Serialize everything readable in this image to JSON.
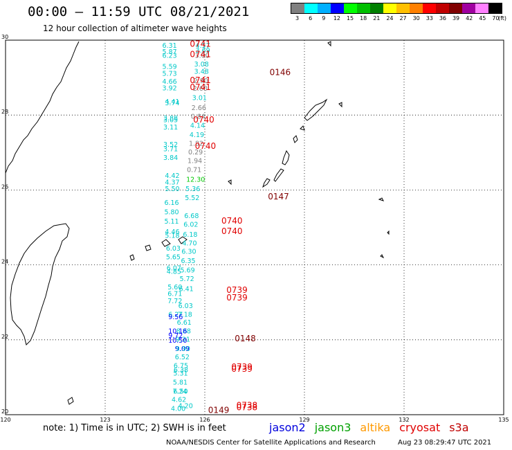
{
  "title": "00:00 – 11:59 UTC 08/21/2021",
  "subtitle": "12 hour collection of altimeter wave heights",
  "legend": {
    "labels": [
      "3",
      "6",
      "9",
      "12",
      "15",
      "18",
      "21",
      "24",
      "27",
      "30",
      "33",
      "36",
      "39",
      "42",
      "45",
      "70",
      "(ft)"
    ],
    "colors": [
      "#808080",
      "#00ffff",
      "#00b0ff",
      "#0000ff",
      "#00ff00",
      "#00c000",
      "#008000",
      "#ffff00",
      "#ffc000",
      "#ff8000",
      "#ff0000",
      "#c00000",
      "#800000",
      "#a000a0",
      "#ff80ff",
      "#000000"
    ]
  },
  "axes": {
    "lon_labels": [
      "120",
      "123",
      "126",
      "129",
      "132",
      "135"
    ],
    "lat_labels": [
      "30",
      "28",
      "26",
      "24",
      "22",
      "20"
    ]
  },
  "chart_data": {
    "type": "scatter",
    "xlim": [
      120,
      135
    ],
    "ylim": [
      20,
      30
    ],
    "gridlines": "dotted",
    "wave_heights": [
      {
        "x": 125.72,
        "y": 29.8,
        "text": "4.57",
        "color": "#00c8c8"
      },
      {
        "x": 125.72,
        "y": 29.67,
        "text": "3.69",
        "color": "#00c8c8"
      },
      {
        "x": 125.7,
        "y": 29.53,
        "text": "3.00",
        "color": "#808080"
      },
      {
        "x": 125.68,
        "y": 29.3,
        "text": "3.08",
        "color": "#00c8c8"
      },
      {
        "x": 125.68,
        "y": 29.1,
        "text": "3.48",
        "color": "#00c8c8"
      },
      {
        "x": 125.66,
        "y": 28.85,
        "text": "2.90",
        "color": "#808080"
      },
      {
        "x": 125.64,
        "y": 28.65,
        "text": "2.60",
        "color": "#808080"
      },
      {
        "x": 125.62,
        "y": 28.4,
        "text": "3.01",
        "color": "#00c8c8"
      },
      {
        "x": 125.6,
        "y": 28.13,
        "text": "2.66",
        "color": "#808080"
      },
      {
        "x": 125.58,
        "y": 27.9,
        "text": "0.84",
        "color": "#808080"
      },
      {
        "x": 125.56,
        "y": 27.66,
        "text": "4.14",
        "color": "#00c8c8"
      },
      {
        "x": 125.54,
        "y": 27.41,
        "text": "4.19",
        "color": "#00c8c8"
      },
      {
        "x": 125.52,
        "y": 27.18,
        "text": "1.82",
        "color": "#808080"
      },
      {
        "x": 125.5,
        "y": 26.95,
        "text": "0.29",
        "color": "#808080"
      },
      {
        "x": 125.48,
        "y": 26.72,
        "text": "1.94",
        "color": "#808080"
      },
      {
        "x": 125.46,
        "y": 26.48,
        "text": "0.71",
        "color": "#808080"
      },
      {
        "x": 125.44,
        "y": 26.22,
        "text": "12.30",
        "color": "#00c800"
      },
      {
        "x": 125.42,
        "y": 25.97,
        "text": "5.36",
        "color": "#00c8c8"
      },
      {
        "x": 125.4,
        "y": 25.73,
        "text": "5.52",
        "color": "#00c8c8"
      },
      {
        "x": 125.38,
        "y": 25.25,
        "text": "6.68",
        "color": "#00c8c8"
      },
      {
        "x": 125.36,
        "y": 25.02,
        "text": "6.02",
        "color": "#00c8c8"
      },
      {
        "x": 125.34,
        "y": 24.75,
        "text": "6.18",
        "color": "#00c8c8"
      },
      {
        "x": 125.32,
        "y": 24.52,
        "text": "4.70",
        "color": "#00c8c8"
      },
      {
        "x": 125.3,
        "y": 24.3,
        "text": "6.30",
        "color": "#00c8c8"
      },
      {
        "x": 125.28,
        "y": 24.05,
        "text": "6.35",
        "color": "#00c8c8"
      },
      {
        "x": 125.26,
        "y": 23.8,
        "text": "5.69",
        "color": "#00c8c8"
      },
      {
        "x": 125.24,
        "y": 23.57,
        "text": "5.72",
        "color": "#00c8c8"
      },
      {
        "x": 125.22,
        "y": 23.3,
        "text": "6.41",
        "color": "#00c8c8"
      },
      {
        "x": 125.2,
        "y": 22.85,
        "text": "6.03",
        "color": "#00c8c8"
      },
      {
        "x": 125.18,
        "y": 22.62,
        "text": "7.18",
        "color": "#00c8c8"
      },
      {
        "x": 125.16,
        "y": 22.4,
        "text": "6.61",
        "color": "#00c8c8"
      },
      {
        "x": 125.14,
        "y": 22.17,
        "text": "8.88",
        "color": "#00c8c8"
      },
      {
        "x": 125.12,
        "y": 21.95,
        "text": "9.31",
        "color": "#00c8c8"
      },
      {
        "x": 125.1,
        "y": 21.7,
        "text": "9.09",
        "color": "#0000ff"
      },
      {
        "x": 125.12,
        "y": 21.7,
        "text": "9.90",
        "color": "#00c8c8"
      },
      {
        "x": 125.1,
        "y": 21.48,
        "text": "6.52",
        "color": "#00c8c8"
      },
      {
        "x": 125.06,
        "y": 21.25,
        "text": "6.75",
        "color": "#00c8c8"
      },
      {
        "x": 125.06,
        "y": 21.14,
        "text": "6.38",
        "color": "#00c8c8"
      },
      {
        "x": 125.05,
        "y": 21.04,
        "text": "5.31",
        "color": "#00c8c8"
      },
      {
        "x": 125.04,
        "y": 20.8,
        "text": "5.81",
        "color": "#00c8c8"
      },
      {
        "x": 125.03,
        "y": 20.56,
        "text": "7.24",
        "color": "#00c8c8"
      },
      {
        "x": 125.05,
        "y": 20.56,
        "text": "6.50",
        "color": "#00c8c8"
      },
      {
        "x": 125.0,
        "y": 20.34,
        "text": "4.62",
        "color": "#00c8c8"
      },
      {
        "x": 125.2,
        "y": 20.18,
        "text": "4.20",
        "color": "#00c8c8"
      },
      {
        "x": 124.98,
        "y": 20.1,
        "text": "4.00",
        "color": "#00c8c8"
      },
      {
        "x": 124.72,
        "y": 29.8,
        "text": "6.31",
        "color": "#00c8c8"
      },
      {
        "x": 124.72,
        "y": 29.63,
        "text": "5.87",
        "color": "#00c8c8"
      },
      {
        "x": 124.72,
        "y": 29.53,
        "text": "6.23",
        "color": "#00c8c8"
      },
      {
        "x": 124.72,
        "y": 29.23,
        "text": "5.59",
        "color": "#00c8c8"
      },
      {
        "x": 124.72,
        "y": 29.05,
        "text": "5.73",
        "color": "#00c8c8"
      },
      {
        "x": 124.72,
        "y": 28.84,
        "text": "4.66",
        "color": "#00c8c8"
      },
      {
        "x": 124.72,
        "y": 28.66,
        "text": "3.92",
        "color": "#00c8c8"
      },
      {
        "x": 124.8,
        "y": 28.3,
        "text": "4.41",
        "color": "#00c8c8"
      },
      {
        "x": 124.8,
        "y": 28.26,
        "text": "3.74",
        "color": "#00c8c8"
      },
      {
        "x": 124.75,
        "y": 27.86,
        "text": "3.88",
        "color": "#00c8c8"
      },
      {
        "x": 124.75,
        "y": 27.81,
        "text": "3.05",
        "color": "#00c8c8"
      },
      {
        "x": 124.75,
        "y": 27.62,
        "text": "3.11",
        "color": "#00c8c8"
      },
      {
        "x": 124.75,
        "y": 27.15,
        "text": "3.52",
        "color": "#00c8c8"
      },
      {
        "x": 124.75,
        "y": 27.03,
        "text": "3.71",
        "color": "#00c8c8"
      },
      {
        "x": 124.75,
        "y": 26.8,
        "text": "3.84",
        "color": "#00c8c8"
      },
      {
        "x": 124.8,
        "y": 26.32,
        "text": "4.42",
        "color": "#00c8c8"
      },
      {
        "x": 124.8,
        "y": 26.15,
        "text": "4.37",
        "color": "#00c8c8"
      },
      {
        "x": 124.8,
        "y": 25.97,
        "text": "5.50",
        "color": "#00c8c8"
      },
      {
        "x": 124.78,
        "y": 25.6,
        "text": "6.16",
        "color": "#00c8c8"
      },
      {
        "x": 124.78,
        "y": 25.35,
        "text": "5.80",
        "color": "#00c8c8"
      },
      {
        "x": 124.78,
        "y": 25.1,
        "text": "5.11",
        "color": "#00c8c8"
      },
      {
        "x": 124.8,
        "y": 24.82,
        "text": "4.46",
        "color": "#00c8c8"
      },
      {
        "x": 124.8,
        "y": 24.72,
        "text": "5.18",
        "color": "#00c8c8"
      },
      {
        "x": 124.83,
        "y": 24.38,
        "text": "6.03",
        "color": "#00c8c8"
      },
      {
        "x": 124.83,
        "y": 24.15,
        "text": "5.65",
        "color": "#00c8c8"
      },
      {
        "x": 124.85,
        "y": 23.85,
        "text": "6.07",
        "color": "#00c8c8"
      },
      {
        "x": 124.85,
        "y": 23.76,
        "text": "4.85",
        "color": "#00c8c8"
      },
      {
        "x": 124.88,
        "y": 23.35,
        "text": "5.60",
        "color": "#00c8c8"
      },
      {
        "x": 124.88,
        "y": 23.17,
        "text": "6.71",
        "color": "#00c8c8"
      },
      {
        "x": 124.88,
        "y": 22.98,
        "text": "7.72",
        "color": "#00c8c8"
      },
      {
        "x": 124.9,
        "y": 22.62,
        "text": "6.27",
        "color": "#00c8c8"
      },
      {
        "x": 124.9,
        "y": 22.55,
        "text": "9.56",
        "color": "#0000ff"
      },
      {
        "x": 124.9,
        "y": 22.17,
        "text": "10.16",
        "color": "#0000ff"
      },
      {
        "x": 124.9,
        "y": 22.05,
        "text": "9.72",
        "color": "#0000ff"
      },
      {
        "x": 124.9,
        "y": 21.92,
        "text": "10.50",
        "color": "#0000ff"
      }
    ],
    "passes": [
      {
        "x": 125.55,
        "y": 29.82,
        "text": "0741",
        "color": "#e00000"
      },
      {
        "x": 125.55,
        "y": 29.55,
        "text": "0741",
        "color": "#e00000"
      },
      {
        "x": 125.55,
        "y": 28.85,
        "text": "0741",
        "color": "#e00000"
      },
      {
        "x": 125.55,
        "y": 28.67,
        "text": "0741",
        "color": "#e00000"
      },
      {
        "x": 125.65,
        "y": 27.8,
        "text": "0740",
        "color": "#e00000"
      },
      {
        "x": 125.7,
        "y": 27.1,
        "text": "0740",
        "color": "#e00000"
      },
      {
        "x": 126.5,
        "y": 25.1,
        "text": "0740",
        "color": "#e00000"
      },
      {
        "x": 126.5,
        "y": 24.82,
        "text": "0740",
        "color": "#e00000"
      },
      {
        "x": 126.65,
        "y": 23.25,
        "text": "0739",
        "color": "#e00000"
      },
      {
        "x": 126.65,
        "y": 23.05,
        "text": "0739",
        "color": "#e00000"
      },
      {
        "x": 126.8,
        "y": 21.2,
        "text": "0739",
        "color": "#e00000"
      },
      {
        "x": 126.8,
        "y": 21.15,
        "text": "0739",
        "color": "#e00000"
      },
      {
        "x": 126.95,
        "y": 20.18,
        "text": "0738",
        "color": "#e00000"
      },
      {
        "x": 126.95,
        "y": 20.12,
        "text": "0738",
        "color": "#e00000"
      },
      {
        "x": 127.95,
        "y": 29.07,
        "text": "0146",
        "color": "#800000"
      },
      {
        "x": 127.9,
        "y": 25.75,
        "text": "0147",
        "color": "#800000"
      },
      {
        "x": 126.9,
        "y": 21.96,
        "text": "0148",
        "color": "#800000"
      },
      {
        "x": 126.1,
        "y": 20.05,
        "text": "0149",
        "color": "#800000"
      }
    ]
  },
  "note": "note:  1) Time is in UTC;  2) SWH is in feet",
  "satellites": [
    {
      "name": "jason2",
      "color": "#0000dd"
    },
    {
      "name": "jason3",
      "color": "#00a000"
    },
    {
      "name": "altika",
      "color": "#ff9900"
    },
    {
      "name": "cryosat",
      "color": "#e00000"
    },
    {
      "name": "s3a",
      "color": "#c00000"
    }
  ],
  "credit": "NOAA/NESDIS Center for Satellite Applications and Research",
  "timestamp": "Aug 23 08:29:47 UTC 2021"
}
